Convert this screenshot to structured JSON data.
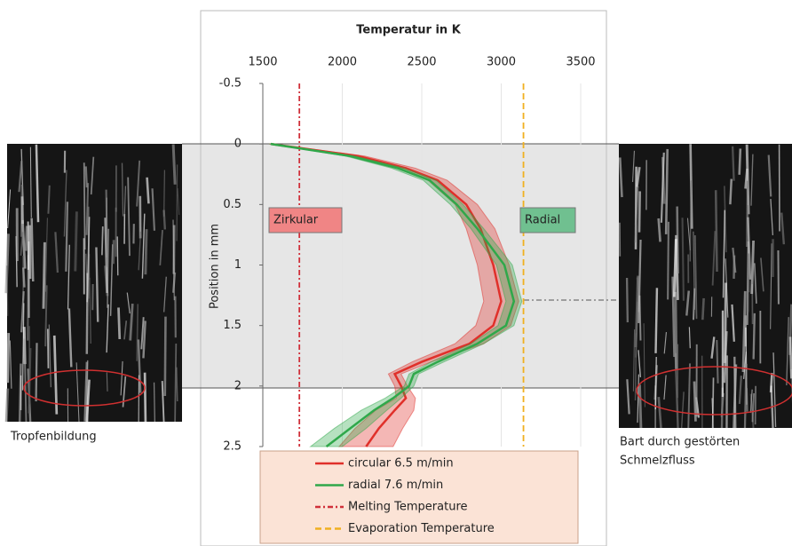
{
  "chart_data": {
    "type": "line",
    "title": "Temperatur in K",
    "y_label": "Position in mm",
    "xlim": [
      1500,
      3500
    ],
    "xticks": [
      1500,
      2000,
      2500,
      3000,
      3500
    ],
    "ylim": [
      -0.5,
      2.5
    ],
    "yticks": [
      -0.5,
      0,
      0.5,
      1,
      1.5,
      2,
      2.5
    ],
    "y_inverted": true,
    "grid": true,
    "positions": [
      0,
      0.1,
      0.2,
      0.3,
      0.5,
      0.7,
      1.0,
      1.3,
      1.5,
      1.65,
      1.8,
      1.9,
      2.0,
      2.1,
      2.2,
      2.35,
      2.5
    ],
    "series": [
      {
        "name": "circular 6.5 m/min",
        "color": "#e0302a",
        "values": [
          1550,
          2100,
          2400,
          2600,
          2780,
          2870,
          2950,
          3000,
          2950,
          2800,
          2500,
          2330,
          2370,
          2400,
          2330,
          2230,
          2150
        ],
        "errors": [
          10,
          40,
          60,
          60,
          70,
          90,
          100,
          110,
          110,
          90,
          60,
          40,
          40,
          60,
          120,
          150,
          170
        ]
      },
      {
        "name": "radial 7.6 m/min",
        "color": "#2fa84a",
        "values": [
          1550,
          2050,
          2350,
          2550,
          2720,
          2850,
          3020,
          3080,
          3030,
          2850,
          2600,
          2450,
          2420,
          2320,
          2200,
          2050,
          1900
        ],
        "errors": [
          10,
          30,
          40,
          40,
          40,
          40,
          50,
          50,
          50,
          40,
          40,
          30,
          30,
          50,
          80,
          100,
          100
        ]
      }
    ],
    "reference_lines": [
      {
        "name": "Melting Temperature",
        "value": 1730,
        "color": "#d0303a",
        "dash": "6,3,2,3"
      },
      {
        "name": "Evaporation Temperature",
        "value": 3140,
        "color": "#f0b020",
        "dash": "7,4"
      }
    ],
    "annotations": [
      {
        "text": "Zirkular",
        "color": "#f08585"
      },
      {
        "text": "Radial",
        "color": "#70c090"
      }
    ],
    "captions": [
      "Tropfenbildung",
      "Bart durch gestörten",
      "Schmelzfluss"
    ]
  }
}
